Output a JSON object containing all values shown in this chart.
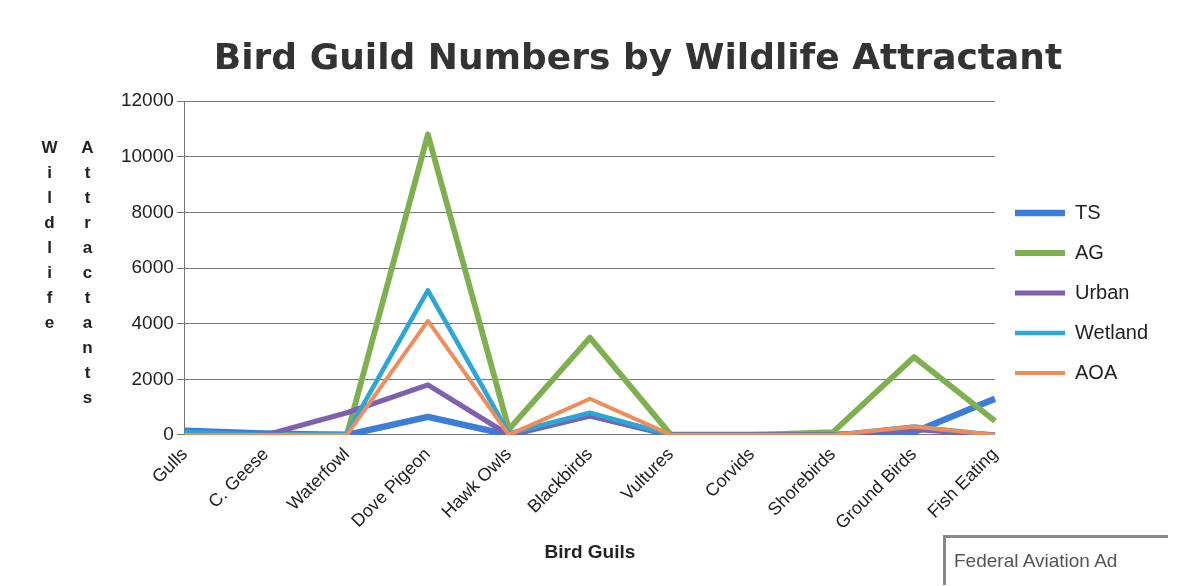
{
  "chart_data": {
    "type": "line",
    "title": "Bird Guild Numbers by Wildlife Attractant",
    "xlabel": "Bird Guils",
    "ylabel": "Wildlife Attractants",
    "categories": [
      "Gulls",
      "C. Geese",
      "Waterfowl",
      "Dove Pigeon",
      "Hawk Owls",
      "Blackbirds",
      "Vultures",
      "Corvids",
      "Shorebirds",
      "Ground Birds",
      "Fish Eating"
    ],
    "series": [
      {
        "name": "TS",
        "color": "#3b7dd8",
        "values": [
          150,
          50,
          0,
          650,
          0,
          700,
          0,
          0,
          0,
          100,
          1300
        ]
      },
      {
        "name": "AG",
        "color": "#7fb04f",
        "values": [
          0,
          0,
          0,
          10800,
          200,
          3500,
          0,
          0,
          100,
          2800,
          500
        ]
      },
      {
        "name": "Urban",
        "color": "#7f5fb0",
        "values": [
          0,
          0,
          800,
          1800,
          0,
          700,
          0,
          0,
          0,
          200,
          0
        ]
      },
      {
        "name": "Wetland",
        "color": "#2aa6d8",
        "values": [
          100,
          0,
          50,
          5200,
          50,
          800,
          0,
          0,
          0,
          300,
          0
        ]
      },
      {
        "name": "AOA",
        "color": "#f08c5a",
        "values": [
          0,
          0,
          0,
          4100,
          0,
          1300,
          0,
          0,
          0,
          300,
          0
        ]
      }
    ],
    "ylim": [
      0,
      12000
    ],
    "yticks": [
      0,
      2000,
      4000,
      6000,
      8000,
      10000,
      12000
    ],
    "grid": "y",
    "legend": "right",
    "marker": "none",
    "line_style": "solid",
    "annotations": [
      "Federal Aviation Ad"
    ]
  }
}
